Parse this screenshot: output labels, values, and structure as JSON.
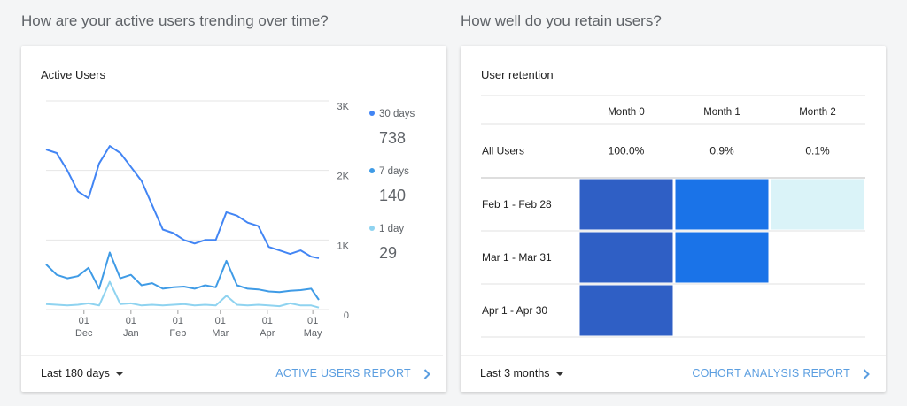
{
  "page": {
    "headings": [
      "How are your active users trending over time?",
      "How well do you retain users?"
    ],
    "footers": [
      {
        "range": "Last 180 days",
        "link": "ACTIVE USERS REPORT"
      },
      {
        "range": "Last 3 months",
        "link": "COHORT ANALYSIS REPORT"
      }
    ]
  },
  "chart_data": [
    {
      "type": "line",
      "title": "Active Users",
      "x": [
        "11-06",
        "11-13",
        "11-20",
        "11-27",
        "12-04",
        "12-11",
        "12-18",
        "12-25",
        "01-01",
        "01-08",
        "01-15",
        "01-22",
        "01-29",
        "02-05",
        "02-12",
        "02-19",
        "02-26",
        "03-05",
        "03-12",
        "03-19",
        "03-26",
        "04-02",
        "04-09",
        "04-16",
        "04-23",
        "04-30",
        "05-05"
      ],
      "series": [
        {
          "name": "30 days",
          "color": "#4285f4",
          "values": [
            2300,
            2250,
            2000,
            1700,
            1600,
            2100,
            2350,
            2250,
            2050,
            1850,
            1500,
            1150,
            1100,
            1000,
            950,
            1000,
            1000,
            1400,
            1350,
            1250,
            1200,
            900,
            850,
            800,
            850,
            760,
            738
          ]
        },
        {
          "name": "7 days",
          "color": "#3f9be6",
          "values": [
            650,
            500,
            450,
            480,
            600,
            300,
            820,
            450,
            500,
            350,
            380,
            300,
            320,
            330,
            300,
            350,
            320,
            700,
            350,
            300,
            290,
            260,
            250,
            270,
            280,
            300,
            140
          ]
        },
        {
          "name": "1 day",
          "color": "#8fd3f0",
          "values": [
            80,
            70,
            60,
            70,
            90,
            60,
            400,
            80,
            90,
            60,
            70,
            60,
            70,
            80,
            60,
            70,
            60,
            200,
            70,
            60,
            70,
            60,
            50,
            90,
            60,
            60,
            29
          ]
        }
      ],
      "xlim": [
        "11-06",
        "05-05"
      ],
      "xticks": [
        {
          "value": "12-01",
          "label": [
            "01",
            "Dec"
          ]
        },
        {
          "value": "01-01",
          "label": [
            "01",
            "Jan"
          ]
        },
        {
          "value": "02-01",
          "label": [
            "01",
            "Feb"
          ]
        },
        {
          "value": "03-01",
          "label": [
            "01",
            "Mar"
          ]
        },
        {
          "value": "04-01",
          "label": [
            "01",
            "Apr"
          ]
        },
        {
          "value": "05-01",
          "label": [
            "01",
            "May"
          ]
        }
      ],
      "ylim": [
        0,
        3000
      ],
      "yticks": [
        0,
        {
          "value": 1000,
          "label": "1K"
        },
        {
          "value": 2000,
          "label": "2K"
        },
        {
          "value": 3000,
          "label": "3K"
        }
      ],
      "grid": true
    },
    {
      "type": "retention",
      "title": "User retention",
      "columns": [
        "Month 0",
        "Month 1",
        "Month 2"
      ],
      "rows": [
        {
          "name": "All Users",
          "values": [
            100.0,
            0.9,
            0.1
          ],
          "value_labels": [
            "100.0%",
            "0.9%",
            "0.1%"
          ]
        }
      ],
      "cohorts": [
        {
          "name": "Feb 1 - Feb 28",
          "colors": [
            "#2f5fc5",
            "#1a73e8",
            "#daf3f8"
          ]
        },
        {
          "name": "Mar 1 - Mar 31",
          "colors": [
            "#2f5fc5",
            "#1a73e8",
            null
          ]
        },
        {
          "name": "Apr 1 - Apr 30",
          "colors": [
            "#2f5fc5",
            null,
            null
          ]
        }
      ]
    }
  ]
}
